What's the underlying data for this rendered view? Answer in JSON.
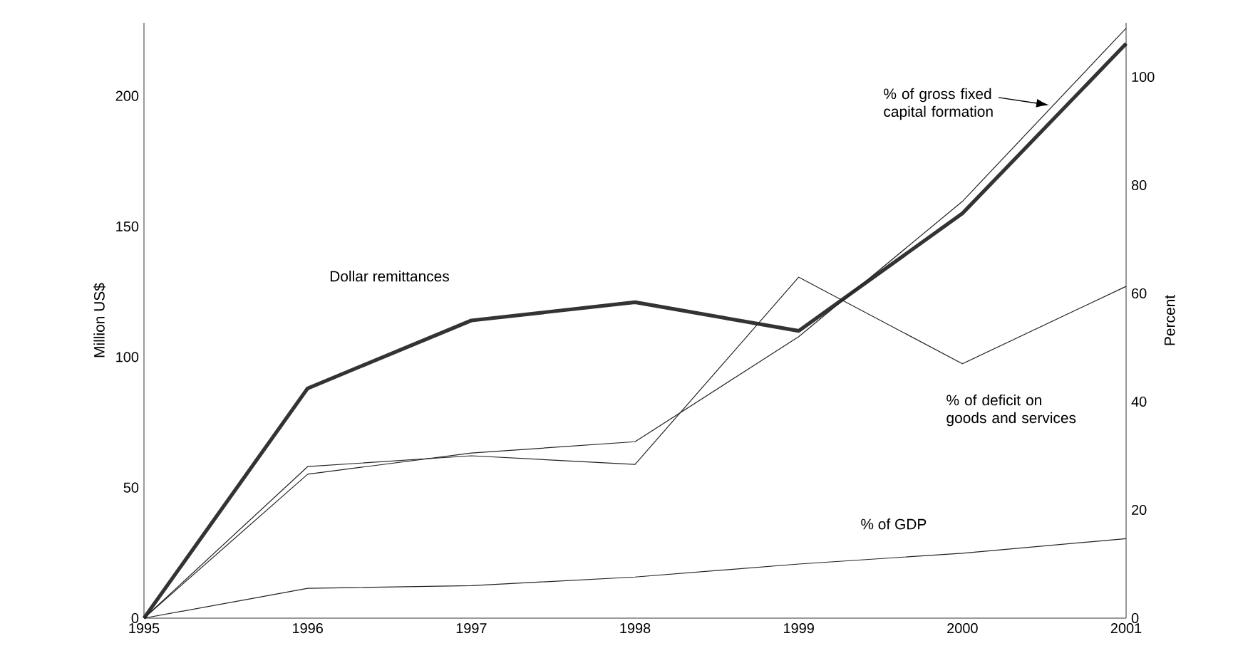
{
  "chart_data": {
    "type": "line",
    "ylabel": "Million US$",
    "y2label": "Percent",
    "categories": [
      "1995",
      "1996",
      "1997",
      "1998",
      "1999",
      "2000",
      "2001"
    ],
    "ylim": [
      0,
      228
    ],
    "yticks": [
      0,
      50,
      100,
      150,
      200
    ],
    "y2lim": [
      0,
      110
    ],
    "y2ticks": [
      0,
      20,
      40,
      60,
      80,
      100
    ],
    "legend": false,
    "grid": false,
    "marker": "none",
    "line_style": "solid",
    "series": [
      {
        "name": "Dollar remittances",
        "color": "#333333",
        "values": [
          0,
          88,
          114,
          121,
          110,
          155,
          220
        ]
      },
      {
        "name": "% of gross fixed capital formation",
        "color": "#222222",
        "axis": "y2",
        "values": [
          0,
          26.6,
          30.5,
          32.6,
          52,
          77,
          109
        ]
      },
      {
        "name": "% of deficit on goods and services",
        "color": "#222222",
        "axis": "y2",
        "values": [
          0,
          28,
          30,
          28.4,
          63,
          47,
          61.3
        ]
      },
      {
        "name": "% of GDP",
        "color": "#222222",
        "axis": "y2",
        "values": [
          0,
          5.5,
          6,
          7.6,
          10,
          12,
          14.7
        ]
      }
    ]
  }
}
